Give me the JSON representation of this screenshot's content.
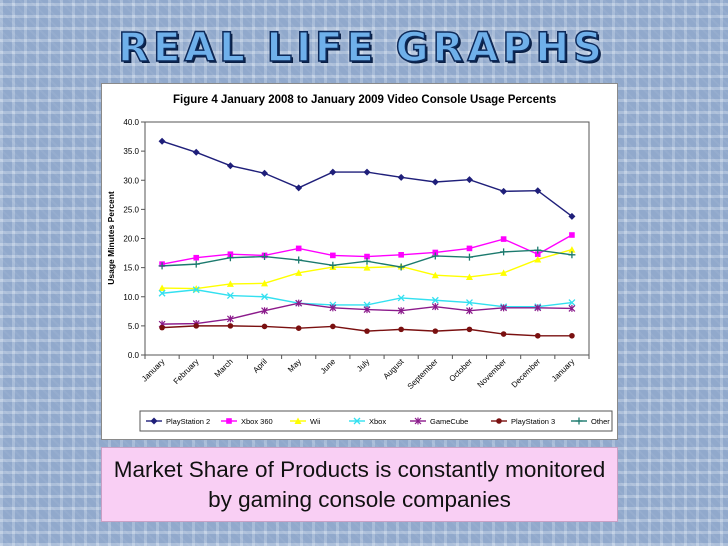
{
  "slide": {
    "title": "REAL LIFE GRAPHS",
    "caption": "Market Share of Products is constantly monitored by gaming console companies"
  },
  "chart_data": {
    "type": "line",
    "title": "Figure 4  January 2008 to January 2009 Video Console Usage Percents",
    "xlabel": "",
    "ylabel": "Usage Minutes Percent",
    "ylim": [
      0,
      40
    ],
    "yticks": [
      "0.0",
      "5.0",
      "10.0",
      "15.0",
      "20.0",
      "25.0",
      "30.0",
      "35.0",
      "40.0"
    ],
    "grid": false,
    "legend_position": "bottom",
    "categories": [
      "January",
      "February",
      "March",
      "April",
      "May",
      "June",
      "July",
      "August",
      "September",
      "October",
      "November",
      "December",
      "January"
    ],
    "series": [
      {
        "name": "PlayStation 2",
        "color": "#1f1f7a",
        "marker": "diamond",
        "values": [
          36.7,
          34.8,
          32.5,
          31.2,
          28.7,
          31.4,
          31.4,
          30.5,
          29.7,
          30.1,
          28.1,
          28.2,
          23.8
        ]
      },
      {
        "name": "Xbox 360",
        "color": "#ff00ff",
        "marker": "square",
        "values": [
          15.6,
          16.7,
          17.3,
          17.1,
          18.3,
          17.1,
          16.9,
          17.2,
          17.6,
          18.3,
          19.9,
          17.3,
          20.6
        ]
      },
      {
        "name": "Wii",
        "color": "#ffff00",
        "marker": "triangle",
        "values": [
          11.5,
          11.4,
          12.2,
          12.3,
          14.1,
          15.1,
          15.0,
          15.2,
          13.7,
          13.4,
          14.1,
          16.4,
          18.1
        ]
      },
      {
        "name": "Xbox",
        "color": "#33e0f0",
        "marker": "x",
        "values": [
          10.6,
          11.2,
          10.2,
          10.0,
          8.9,
          8.6,
          8.6,
          9.8,
          9.4,
          9.0,
          8.3,
          8.3,
          9.0
        ]
      },
      {
        "name": "GameCube",
        "color": "#8b1a8b",
        "marker": "star",
        "values": [
          5.3,
          5.4,
          6.2,
          7.6,
          8.9,
          8.1,
          7.8,
          7.6,
          8.3,
          7.6,
          8.1,
          8.1,
          8.0
        ]
      },
      {
        "name": "PlayStation 3",
        "color": "#7a1010",
        "marker": "circle",
        "values": [
          4.7,
          5.0,
          5.0,
          4.9,
          4.6,
          4.9,
          4.1,
          4.4,
          4.1,
          4.4,
          3.6,
          3.3,
          3.3
        ]
      },
      {
        "name": "Other",
        "color": "#1c7a6e",
        "marker": "plus",
        "values": [
          15.3,
          15.6,
          16.7,
          16.9,
          16.3,
          15.4,
          16.1,
          15.1,
          17.0,
          16.8,
          17.7,
          18.0,
          17.2
        ]
      }
    ]
  }
}
